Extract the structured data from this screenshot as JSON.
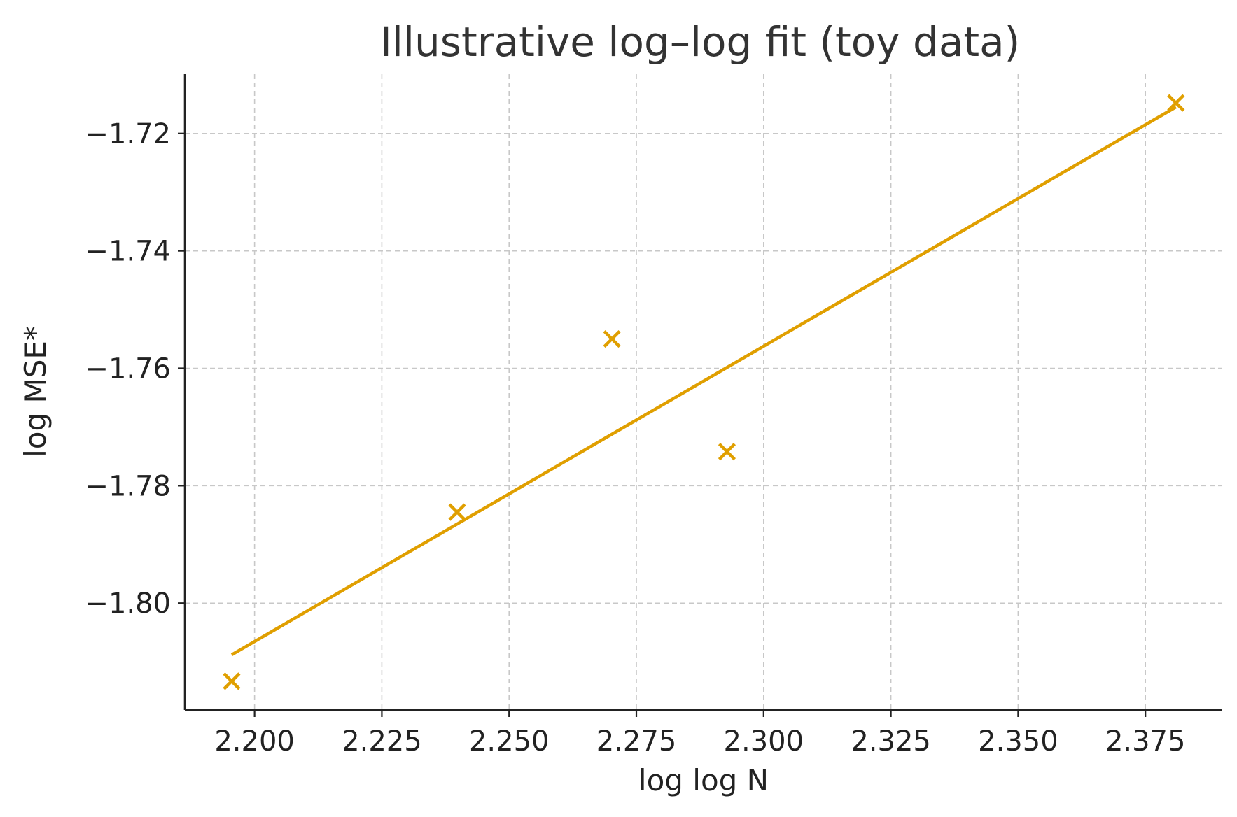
{
  "chart_data": {
    "type": "scatter",
    "title": "Illustrative log–log fit (toy data)",
    "xlabel": "log log N",
    "ylabel": "log MSE*",
    "xlim": [
      2.1863,
      2.3901
    ],
    "ylim": [
      -1.8182,
      -1.7099
    ],
    "xticks": [
      2.2,
      2.225,
      2.25,
      2.275,
      2.3,
      2.325,
      2.35,
      2.375
    ],
    "xtick_labels": [
      "2.200",
      "2.225",
      "2.250",
      "2.275",
      "2.300",
      "2.325",
      "2.350",
      "2.375"
    ],
    "yticks": [
      -1.72,
      -1.74,
      -1.76,
      -1.78,
      -1.8
    ],
    "ytick_labels": [
      "−1.72",
      "−1.74",
      "−1.76",
      "−1.78",
      "−1.80"
    ],
    "grid": true,
    "color": "#E09F00",
    "series": [
      {
        "kind": "scatter",
        "marker": "x",
        "points": [
          {
            "x": 2.1955,
            "y": -1.8133
          },
          {
            "x": 2.2398,
            "y": -1.7845
          },
          {
            "x": 2.2702,
            "y": -1.755
          },
          {
            "x": 2.2928,
            "y": -1.7742
          },
          {
            "x": 2.381,
            "y": -1.7148
          }
        ]
      },
      {
        "kind": "line",
        "points": [
          {
            "x": 2.1955,
            "y": -1.8088
          },
          {
            "x": 2.381,
            "y": -1.7155
          }
        ]
      }
    ]
  }
}
